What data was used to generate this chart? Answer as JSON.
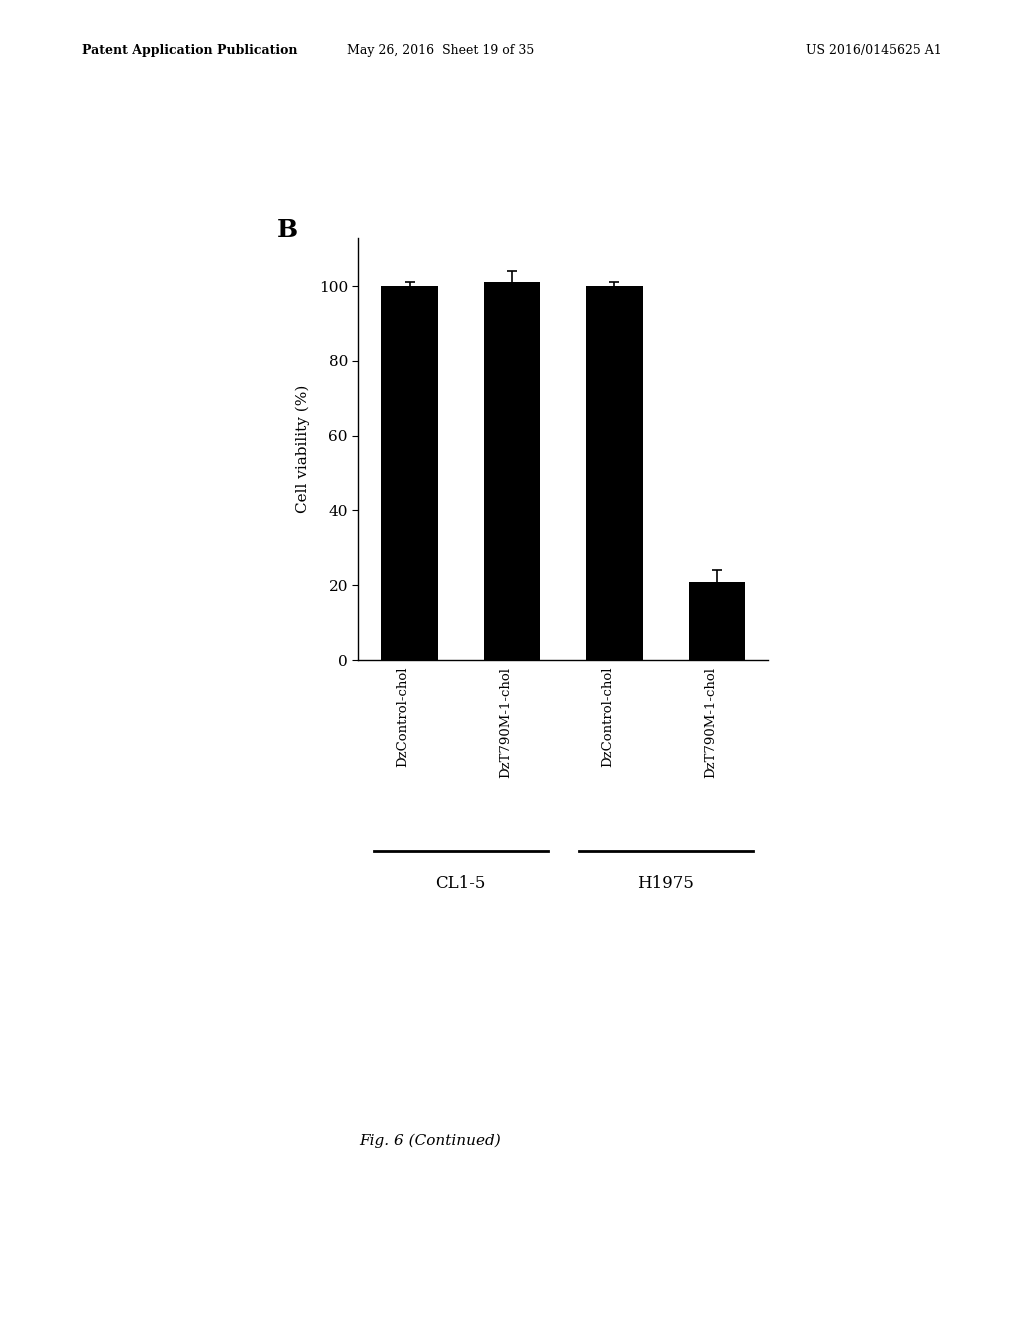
{
  "bar_labels": [
    "DzControl-chol",
    "DzT790M-1-chol",
    "DzControl-chol",
    "DzT790M-1-chol"
  ],
  "bar_values": [
    100,
    101,
    100,
    21
  ],
  "bar_errors": [
    1.2,
    3.0,
    1.0,
    3.2
  ],
  "bar_color": "#000000",
  "bar_width": 0.55,
  "ylabel": "Cell viability (%)",
  "yticks": [
    0,
    20,
    40,
    60,
    80,
    100
  ],
  "ylim": [
    0,
    113
  ],
  "panel_label": "B",
  "group_labels": [
    "CL1-5",
    "H1975"
  ],
  "bar_positions": [
    0,
    1,
    2,
    3
  ],
  "figure_caption": "Fig. 6 (Continued)",
  "background_color": "#ffffff",
  "header_left": "Patent Application Publication",
  "header_mid": "May 26, 2016  Sheet 19 of 35",
  "header_right": "US 2016/0145625 A1"
}
